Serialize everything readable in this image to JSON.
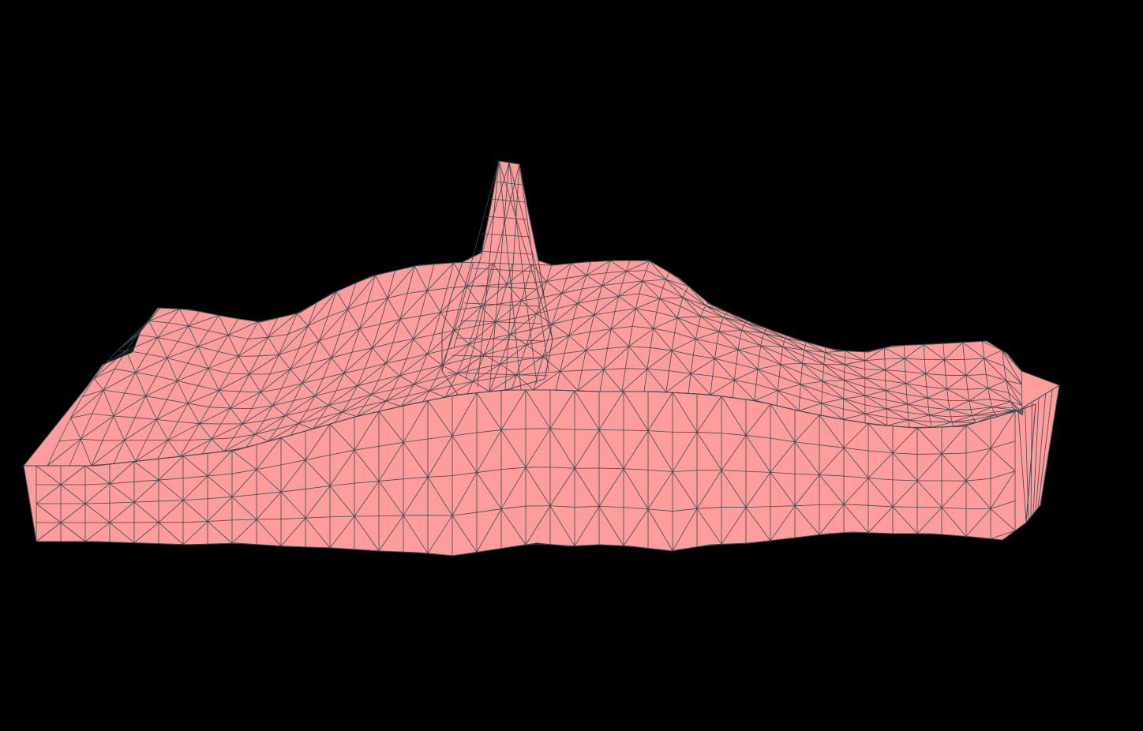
{
  "viewport": {
    "background_color": "#000000"
  },
  "mesh": {
    "fill_color": "#ff9c9c",
    "edge_color": "#3a4a52",
    "shape_description_visible": false
  }
}
